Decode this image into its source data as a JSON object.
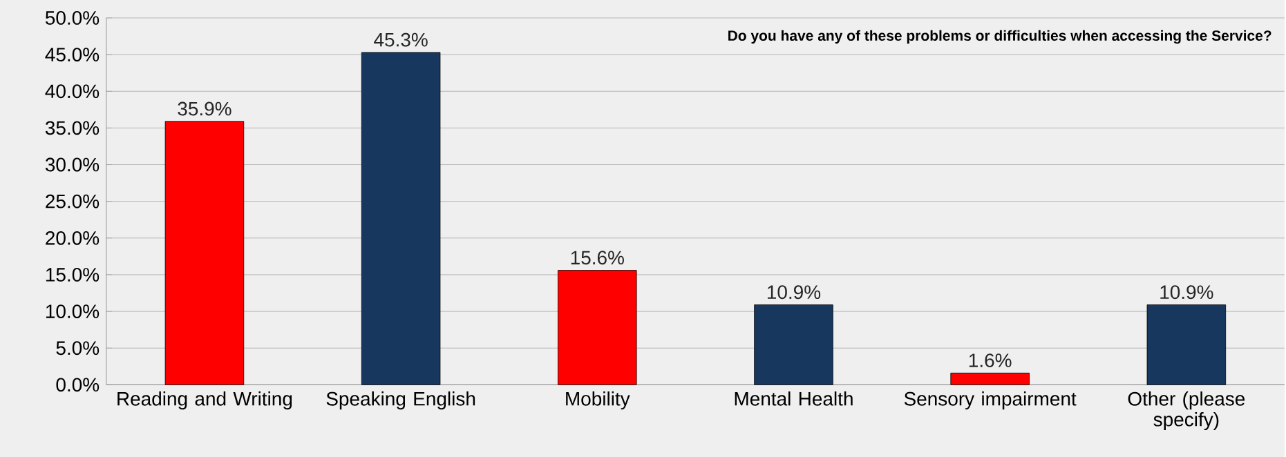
{
  "chart_data": {
    "type": "bar",
    "title": "Do you have any of these problems or difficulties when accessing the Service?",
    "categories": [
      "Reading and Writing",
      "Speaking English",
      "Mobility",
      "Mental Health",
      "Sensory impairment",
      "Other (please specify)"
    ],
    "values": [
      35.9,
      45.3,
      15.6,
      10.9,
      1.6,
      10.9
    ],
    "colors": [
      "#ff0000",
      "#17375e",
      "#ff0000",
      "#17375e",
      "#ff0000",
      "#17375e"
    ],
    "value_labels": [
      "35.9%",
      "45.3%",
      "15.6%",
      "10.9%",
      "1.6%",
      "10.9%"
    ],
    "ylim": [
      0,
      50
    ],
    "yticks": [
      {
        "value": 0,
        "label": "0.0%"
      },
      {
        "value": 5,
        "label": "5.0%"
      },
      {
        "value": 10,
        "label": "10.0%"
      },
      {
        "value": 15,
        "label": "15.0%"
      },
      {
        "value": 20,
        "label": "20.0%"
      },
      {
        "value": 25,
        "label": "25.0%"
      },
      {
        "value": 30,
        "label": "30.0%"
      },
      {
        "value": 35,
        "label": "35.0%"
      },
      {
        "value": 40,
        "label": "40.0%"
      },
      {
        "value": 45,
        "label": "45.0%"
      },
      {
        "value": 50,
        "label": "50.0%"
      }
    ],
    "grid": "y"
  }
}
